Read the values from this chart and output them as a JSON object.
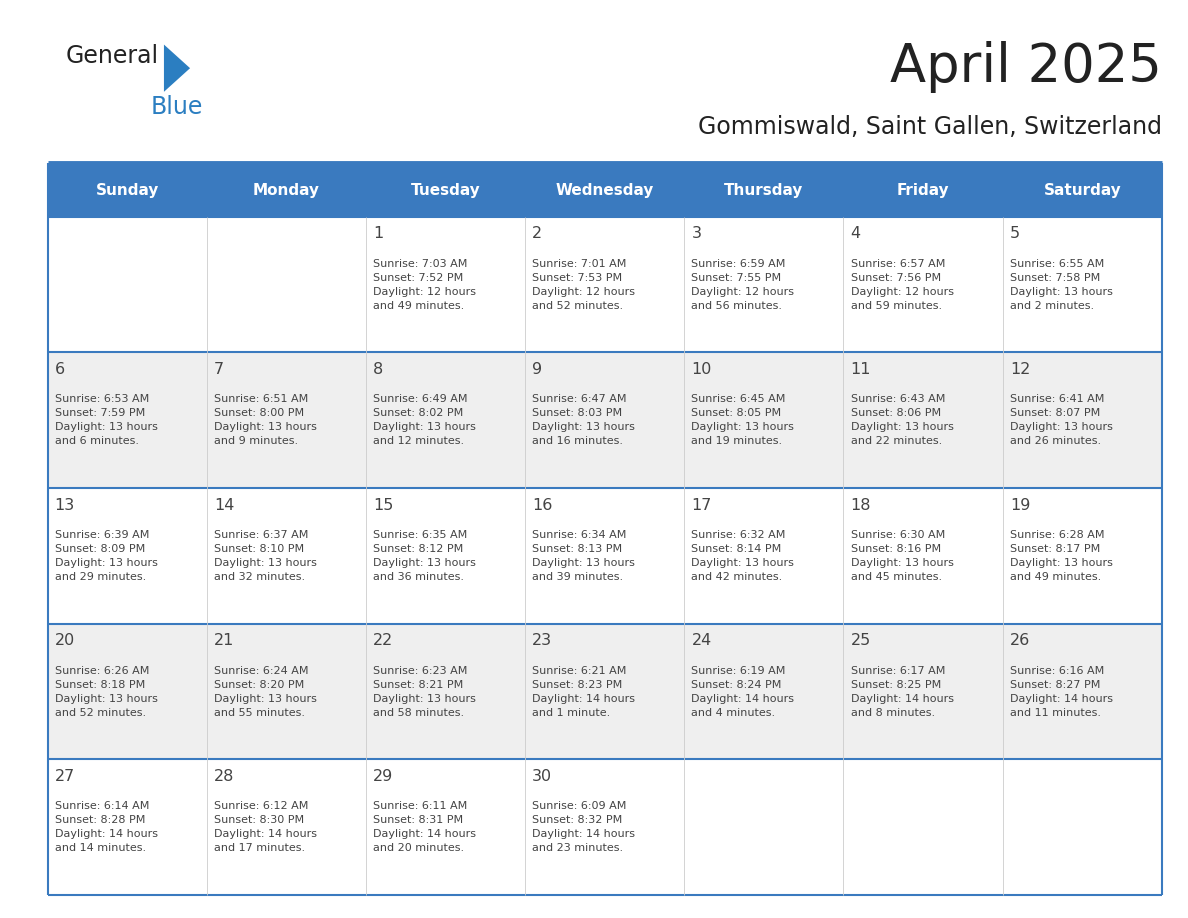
{
  "title": "April 2025",
  "subtitle": "Gommiswald, Saint Gallen, Switzerland",
  "days_of_week": [
    "Sunday",
    "Monday",
    "Tuesday",
    "Wednesday",
    "Thursday",
    "Friday",
    "Saturday"
  ],
  "header_bg": "#3a7abf",
  "header_text": "#ffffff",
  "row_bg_even": "#ffffff",
  "row_bg_odd": "#efefef",
  "border_color": "#3a7abf",
  "separator_color": "#3a7abf",
  "text_color": "#444444",
  "title_color": "#222222",
  "subtitle_color": "#222222",
  "logo_general_color": "#222222",
  "logo_blue_color": "#2b7ec1",
  "calendar_data": [
    [
      {
        "day": "",
        "info": ""
      },
      {
        "day": "",
        "info": ""
      },
      {
        "day": "1",
        "info": "Sunrise: 7:03 AM\nSunset: 7:52 PM\nDaylight: 12 hours\nand 49 minutes."
      },
      {
        "day": "2",
        "info": "Sunrise: 7:01 AM\nSunset: 7:53 PM\nDaylight: 12 hours\nand 52 minutes."
      },
      {
        "day": "3",
        "info": "Sunrise: 6:59 AM\nSunset: 7:55 PM\nDaylight: 12 hours\nand 56 minutes."
      },
      {
        "day": "4",
        "info": "Sunrise: 6:57 AM\nSunset: 7:56 PM\nDaylight: 12 hours\nand 59 minutes."
      },
      {
        "day": "5",
        "info": "Sunrise: 6:55 AM\nSunset: 7:58 PM\nDaylight: 13 hours\nand 2 minutes."
      }
    ],
    [
      {
        "day": "6",
        "info": "Sunrise: 6:53 AM\nSunset: 7:59 PM\nDaylight: 13 hours\nand 6 minutes."
      },
      {
        "day": "7",
        "info": "Sunrise: 6:51 AM\nSunset: 8:00 PM\nDaylight: 13 hours\nand 9 minutes."
      },
      {
        "day": "8",
        "info": "Sunrise: 6:49 AM\nSunset: 8:02 PM\nDaylight: 13 hours\nand 12 minutes."
      },
      {
        "day": "9",
        "info": "Sunrise: 6:47 AM\nSunset: 8:03 PM\nDaylight: 13 hours\nand 16 minutes."
      },
      {
        "day": "10",
        "info": "Sunrise: 6:45 AM\nSunset: 8:05 PM\nDaylight: 13 hours\nand 19 minutes."
      },
      {
        "day": "11",
        "info": "Sunrise: 6:43 AM\nSunset: 8:06 PM\nDaylight: 13 hours\nand 22 minutes."
      },
      {
        "day": "12",
        "info": "Sunrise: 6:41 AM\nSunset: 8:07 PM\nDaylight: 13 hours\nand 26 minutes."
      }
    ],
    [
      {
        "day": "13",
        "info": "Sunrise: 6:39 AM\nSunset: 8:09 PM\nDaylight: 13 hours\nand 29 minutes."
      },
      {
        "day": "14",
        "info": "Sunrise: 6:37 AM\nSunset: 8:10 PM\nDaylight: 13 hours\nand 32 minutes."
      },
      {
        "day": "15",
        "info": "Sunrise: 6:35 AM\nSunset: 8:12 PM\nDaylight: 13 hours\nand 36 minutes."
      },
      {
        "day": "16",
        "info": "Sunrise: 6:34 AM\nSunset: 8:13 PM\nDaylight: 13 hours\nand 39 minutes."
      },
      {
        "day": "17",
        "info": "Sunrise: 6:32 AM\nSunset: 8:14 PM\nDaylight: 13 hours\nand 42 minutes."
      },
      {
        "day": "18",
        "info": "Sunrise: 6:30 AM\nSunset: 8:16 PM\nDaylight: 13 hours\nand 45 minutes."
      },
      {
        "day": "19",
        "info": "Sunrise: 6:28 AM\nSunset: 8:17 PM\nDaylight: 13 hours\nand 49 minutes."
      }
    ],
    [
      {
        "day": "20",
        "info": "Sunrise: 6:26 AM\nSunset: 8:18 PM\nDaylight: 13 hours\nand 52 minutes."
      },
      {
        "day": "21",
        "info": "Sunrise: 6:24 AM\nSunset: 8:20 PM\nDaylight: 13 hours\nand 55 minutes."
      },
      {
        "day": "22",
        "info": "Sunrise: 6:23 AM\nSunset: 8:21 PM\nDaylight: 13 hours\nand 58 minutes."
      },
      {
        "day": "23",
        "info": "Sunrise: 6:21 AM\nSunset: 8:23 PM\nDaylight: 14 hours\nand 1 minute."
      },
      {
        "day": "24",
        "info": "Sunrise: 6:19 AM\nSunset: 8:24 PM\nDaylight: 14 hours\nand 4 minutes."
      },
      {
        "day": "25",
        "info": "Sunrise: 6:17 AM\nSunset: 8:25 PM\nDaylight: 14 hours\nand 8 minutes."
      },
      {
        "day": "26",
        "info": "Sunrise: 6:16 AM\nSunset: 8:27 PM\nDaylight: 14 hours\nand 11 minutes."
      }
    ],
    [
      {
        "day": "27",
        "info": "Sunrise: 6:14 AM\nSunset: 8:28 PM\nDaylight: 14 hours\nand 14 minutes."
      },
      {
        "day": "28",
        "info": "Sunrise: 6:12 AM\nSunset: 8:30 PM\nDaylight: 14 hours\nand 17 minutes."
      },
      {
        "day": "29",
        "info": "Sunrise: 6:11 AM\nSunset: 8:31 PM\nDaylight: 14 hours\nand 20 minutes."
      },
      {
        "day": "30",
        "info": "Sunrise: 6:09 AM\nSunset: 8:32 PM\nDaylight: 14 hours\nand 23 minutes."
      },
      {
        "day": "",
        "info": ""
      },
      {
        "day": "",
        "info": ""
      },
      {
        "day": "",
        "info": ""
      }
    ]
  ]
}
